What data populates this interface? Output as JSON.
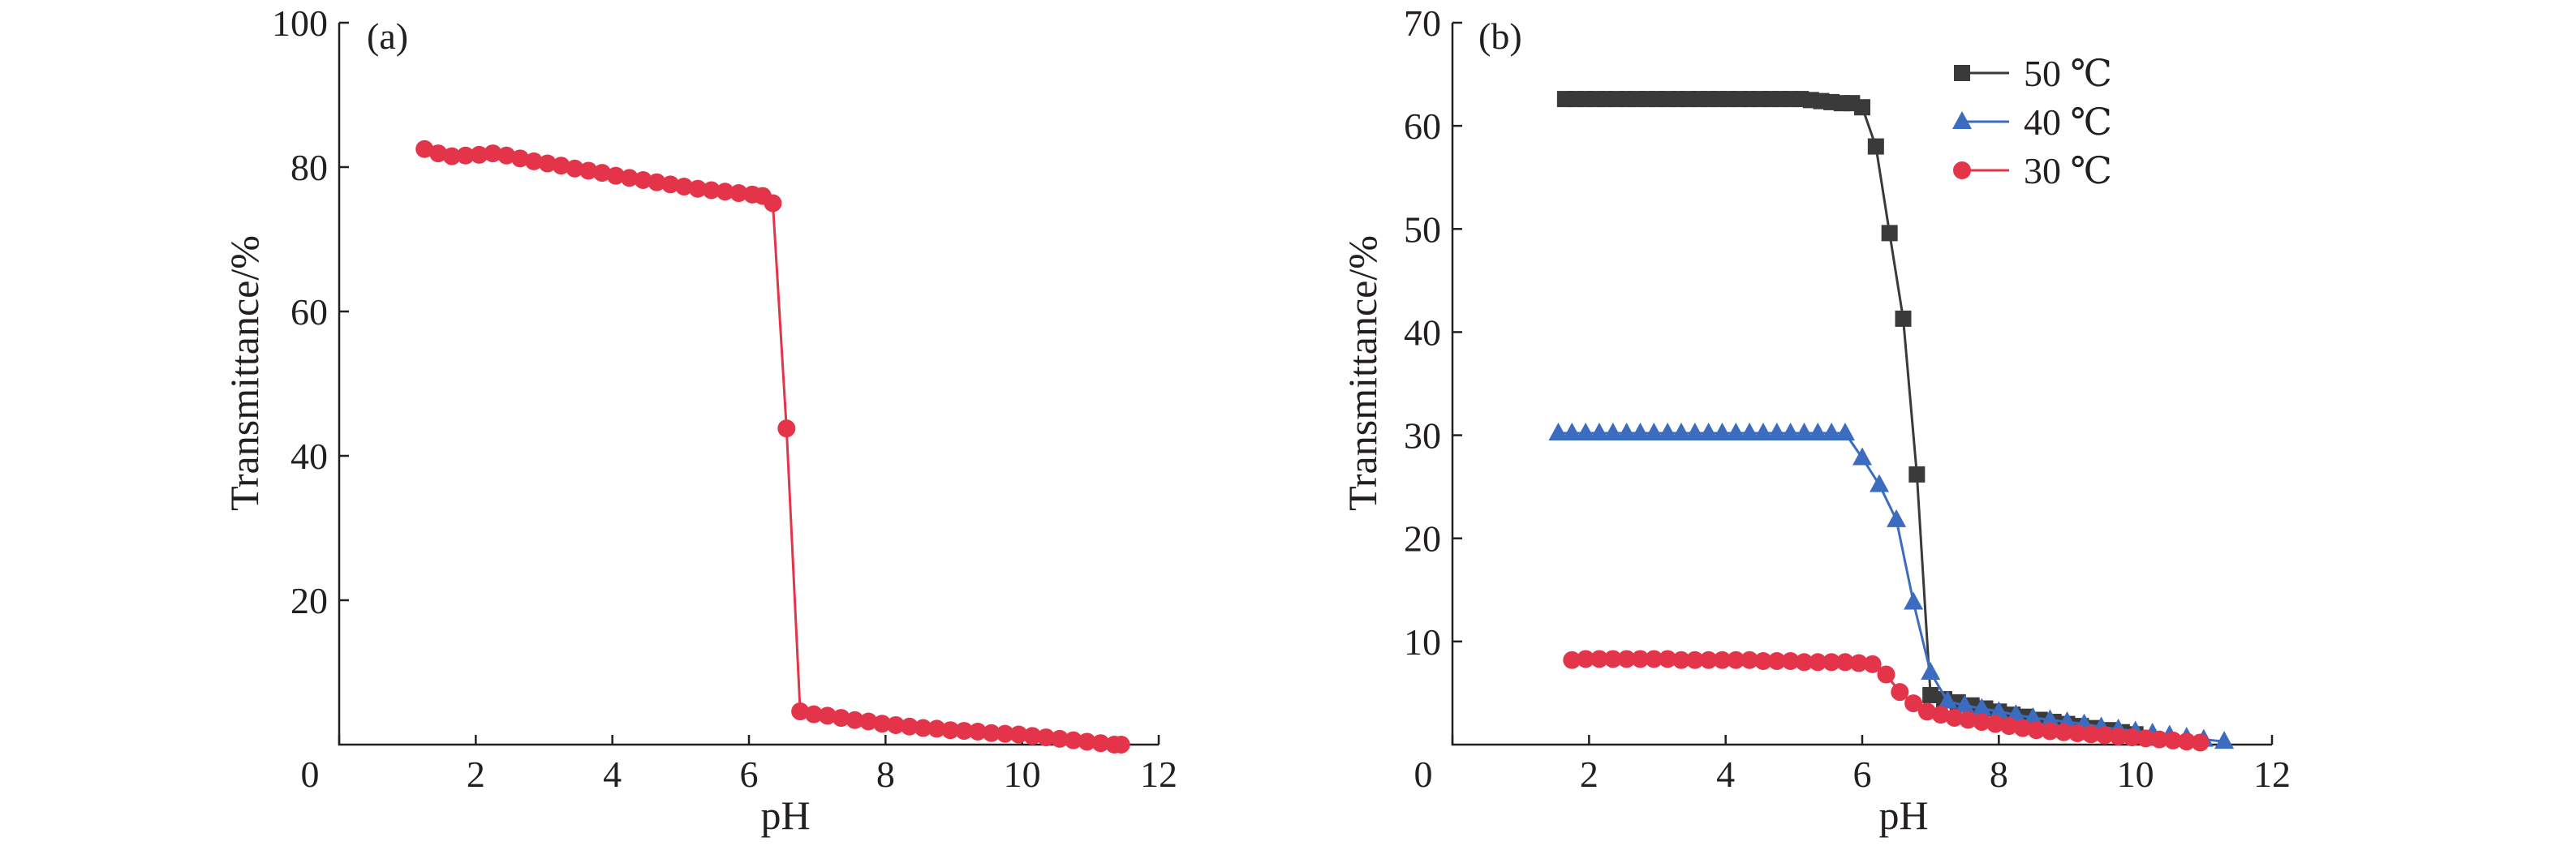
{
  "chart_data": [
    {
      "type": "line",
      "panel_label": "(a)",
      "xlabel": "pH",
      "ylabel": "Transmittance/%",
      "xlim": [
        0,
        12
      ],
      "ylim": [
        0,
        100
      ],
      "xticks": [
        "0",
        "2",
        "4",
        "6",
        "8",
        "10",
        "12"
      ],
      "yticks": [
        "20",
        "40",
        "60",
        "80",
        "100"
      ],
      "legend": "none",
      "grid": false,
      "series": [
        {
          "color": "#e4344a",
          "marker": "circle",
          "x": [
            1.25,
            1.45,
            1.65,
            1.85,
            2.05,
            2.25,
            2.45,
            2.65,
            2.85,
            3.05,
            3.25,
            3.45,
            3.65,
            3.85,
            4.05,
            4.25,
            4.45,
            4.65,
            4.85,
            5.05,
            5.25,
            5.45,
            5.65,
            5.85,
            6.05,
            6.2,
            6.35,
            6.55,
            6.75,
            6.95,
            7.15,
            7.35,
            7.55,
            7.75,
            7.95,
            8.15,
            8.35,
            8.55,
            8.75,
            8.95,
            9.15,
            9.35,
            9.55,
            9.75,
            9.95,
            10.15,
            10.35,
            10.55,
            10.75,
            10.95,
            11.15,
            11.35,
            11.45
          ],
          "y": [
            82.5,
            81.9,
            81.5,
            81.6,
            81.7,
            81.9,
            81.6,
            81.2,
            80.8,
            80.5,
            80.2,
            79.8,
            79.5,
            79.2,
            78.8,
            78.5,
            78.2,
            77.9,
            77.6,
            77.3,
            77.0,
            76.8,
            76.6,
            76.4,
            76.2,
            76.0,
            75.0,
            43.8,
            4.6,
            4.2,
            4.0,
            3.7,
            3.4,
            3.2,
            2.9,
            2.7,
            2.5,
            2.3,
            2.2,
            2.0,
            1.9,
            1.8,
            1.6,
            1.5,
            1.4,
            1.2,
            1.0,
            0.8,
            0.6,
            0.4,
            0.2,
            0.0,
            0.0
          ]
        }
      ]
    },
    {
      "type": "line",
      "panel_label": "(b)",
      "xlabel": "pH",
      "ylabel": "Transmittance/%",
      "xlim": [
        0,
        12
      ],
      "ylim": [
        0,
        70
      ],
      "xticks": [
        "0",
        "2",
        "4",
        "6",
        "8",
        "10",
        "12"
      ],
      "yticks": [
        "10",
        "20",
        "30",
        "40",
        "50",
        "60",
        "70"
      ],
      "legend": "top-right",
      "grid": false,
      "series": [
        {
          "name": "50 ℃",
          "color": "#3a3a3a",
          "marker": "square",
          "x": [
            1.65,
            1.8,
            1.95,
            2.1,
            2.25,
            2.4,
            2.55,
            2.7,
            2.85,
            3.0,
            3.15,
            3.3,
            3.45,
            3.6,
            3.75,
            3.9,
            4.05,
            4.2,
            4.35,
            4.5,
            4.65,
            4.8,
            4.95,
            5.1,
            5.25,
            5.4,
            5.55,
            5.7,
            5.85,
            6.0,
            6.2,
            6.4,
            6.6,
            6.8,
            7.0,
            7.2,
            7.4,
            7.6,
            7.8,
            8.0,
            8.2,
            8.4,
            8.6,
            8.8,
            9.0,
            9.2,
            9.4,
            9.6,
            9.8,
            10.0
          ],
          "y": [
            62.6,
            62.6,
            62.6,
            62.6,
            62.6,
            62.6,
            62.6,
            62.6,
            62.6,
            62.6,
            62.6,
            62.6,
            62.6,
            62.6,
            62.6,
            62.6,
            62.6,
            62.6,
            62.6,
            62.6,
            62.6,
            62.6,
            62.6,
            62.6,
            62.5,
            62.4,
            62.3,
            62.2,
            62.2,
            61.8,
            58.0,
            49.6,
            41.3,
            26.2,
            4.8,
            4.4,
            4.1,
            3.8,
            3.5,
            3.2,
            2.9,
            2.7,
            2.4,
            2.2,
            2.0,
            1.8,
            1.6,
            1.4,
            1.2,
            1.0
          ]
        },
        {
          "name": "40 ℃",
          "color": "#3b6cc0",
          "marker": "triangle",
          "x": [
            1.55,
            1.75,
            1.95,
            2.15,
            2.35,
            2.55,
            2.75,
            2.95,
            3.15,
            3.35,
            3.55,
            3.75,
            3.95,
            4.15,
            4.35,
            4.55,
            4.75,
            4.95,
            5.15,
            5.35,
            5.55,
            5.75,
            6.0,
            6.25,
            6.5,
            6.75,
            7.0,
            7.25,
            7.5,
            7.75,
            8.0,
            8.25,
            8.5,
            8.75,
            9.0,
            9.25,
            9.5,
            9.75,
            10.0,
            10.25,
            10.5,
            10.75,
            11.0,
            11.3
          ],
          "y": [
            30.2,
            30.2,
            30.2,
            30.2,
            30.2,
            30.2,
            30.2,
            30.2,
            30.2,
            30.2,
            30.2,
            30.2,
            30.2,
            30.2,
            30.2,
            30.2,
            30.2,
            30.2,
            30.2,
            30.2,
            30.2,
            30.2,
            27.8,
            25.2,
            21.8,
            13.8,
            7.0,
            4.2,
            3.8,
            3.5,
            3.2,
            2.9,
            2.6,
            2.4,
            2.2,
            2.0,
            1.7,
            1.5,
            1.3,
            1.1,
            0.9,
            0.7,
            0.5,
            0.3
          ]
        },
        {
          "name": "30 ℃",
          "color": "#e4344a",
          "marker": "circle",
          "x": [
            1.75,
            1.95,
            2.15,
            2.35,
            2.55,
            2.75,
            2.95,
            3.15,
            3.35,
            3.55,
            3.75,
            3.95,
            4.15,
            4.35,
            4.55,
            4.75,
            4.95,
            5.15,
            5.35,
            5.55,
            5.75,
            5.95,
            6.15,
            6.35,
            6.55,
            6.75,
            6.95,
            7.15,
            7.35,
            7.55,
            7.75,
            7.95,
            8.15,
            8.35,
            8.55,
            8.75,
            8.95,
            9.15,
            9.35,
            9.55,
            9.75,
            9.95,
            10.15,
            10.35,
            10.55,
            10.75,
            10.95
          ],
          "y": [
            8.2,
            8.3,
            8.3,
            8.3,
            8.3,
            8.3,
            8.3,
            8.3,
            8.2,
            8.2,
            8.2,
            8.2,
            8.2,
            8.2,
            8.1,
            8.1,
            8.1,
            8.0,
            8.0,
            8.0,
            8.0,
            7.9,
            7.8,
            6.8,
            5.1,
            4.0,
            3.2,
            2.9,
            2.6,
            2.4,
            2.2,
            2.0,
            1.8,
            1.6,
            1.4,
            1.3,
            1.2,
            1.1,
            1.0,
            0.9,
            0.8,
            0.7,
            0.6,
            0.5,
            0.4,
            0.3,
            0.2
          ]
        }
      ]
    }
  ]
}
